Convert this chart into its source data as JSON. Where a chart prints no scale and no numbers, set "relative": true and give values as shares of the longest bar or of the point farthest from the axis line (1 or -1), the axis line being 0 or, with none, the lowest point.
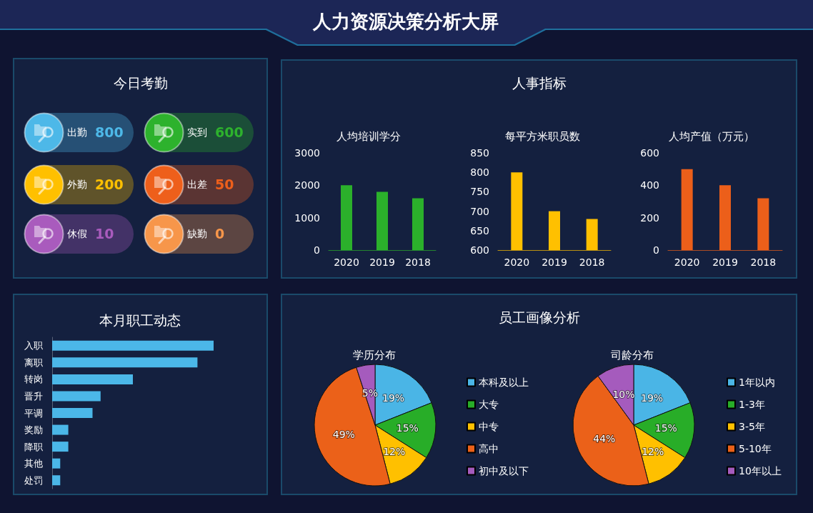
{
  "chart_data": [
    {
      "type": "other",
      "title": "人力资源决策分析大屏"
    },
    {
      "type": "other",
      "title": "今日考勤",
      "categories": [
        "出勤",
        "实到",
        "外勤",
        "出差",
        "休假",
        "缺勤"
      ],
      "values": [
        800,
        600,
        200,
        50,
        10,
        0
      ],
      "colors": [
        "#4db8e8",
        "#2db22d",
        "#ffc000",
        "#ee5f1b",
        "#a95bbd",
        "#f7964a"
      ],
      "data_labels": true
    },
    {
      "type": "other",
      "title": "人事指标"
    },
    {
      "type": "bar",
      "title": "人均培训学分",
      "categories": [
        "2020",
        "2019",
        "2018"
      ],
      "values": [
        2000,
        1800,
        1600
      ],
      "color": "#2bb02b",
      "ylim": [
        0,
        3000
      ],
      "yticks": [
        0,
        1000,
        2000,
        3000
      ]
    },
    {
      "type": "bar",
      "title": "每平方米职员数",
      "categories": [
        "2020",
        "2019",
        "2018"
      ],
      "values": [
        800,
        700,
        680
      ],
      "color": "#ffc000",
      "ylim": [
        600,
        850
      ],
      "yticks": [
        600,
        650,
        700,
        750,
        800,
        850
      ]
    },
    {
      "type": "bar",
      "title": "人均产值（万元）",
      "categories": [
        "2020",
        "2019",
        "2018"
      ],
      "values": [
        500,
        400,
        320
      ],
      "color": "#ec5f1a",
      "ylim": [
        0,
        600
      ],
      "yticks": [
        0,
        200,
        400,
        600
      ]
    },
    {
      "type": "bar",
      "title": "本月职工动态",
      "orientation": "horizontal",
      "relative": true,
      "categories": [
        "入职",
        "离职",
        "转岗",
        "晋升",
        "平调",
        "奖励",
        "降职",
        "其他",
        "处罚"
      ],
      "values": [
        1,
        0.9,
        0.5,
        0.3,
        0.25,
        0.1,
        0.1,
        0.05,
        0.05
      ],
      "color": "#4bb7e8"
    },
    {
      "type": "other",
      "title": "员工画像分析"
    },
    {
      "type": "pie",
      "title": "学历分布",
      "categories": [
        "本科及以上",
        "大专",
        "中专",
        "高中",
        "初中及以下"
      ],
      "values": [
        19,
        15,
        12,
        49,
        5
      ],
      "colors": [
        "#4ab5e6",
        "#28ad28",
        "#ffc000",
        "#eb6119",
        "#a55bbd"
      ],
      "value_labels": [
        "19%",
        "15%",
        "12%",
        "49%",
        "5%"
      ],
      "legend": "right"
    },
    {
      "type": "pie",
      "title": "司龄分布",
      "categories": [
        "1年以内",
        "1-3年",
        "3-5年",
        "5-10年",
        "10年以上"
      ],
      "values": [
        19,
        15,
        12,
        44,
        10
      ],
      "colors": [
        "#4ab5e6",
        "#28ad28",
        "#ffc000",
        "#eb6119",
        "#a55bbd"
      ],
      "value_labels": [
        "19%",
        "15%",
        "12%",
        "44%",
        "10%"
      ],
      "legend": "right"
    }
  ]
}
